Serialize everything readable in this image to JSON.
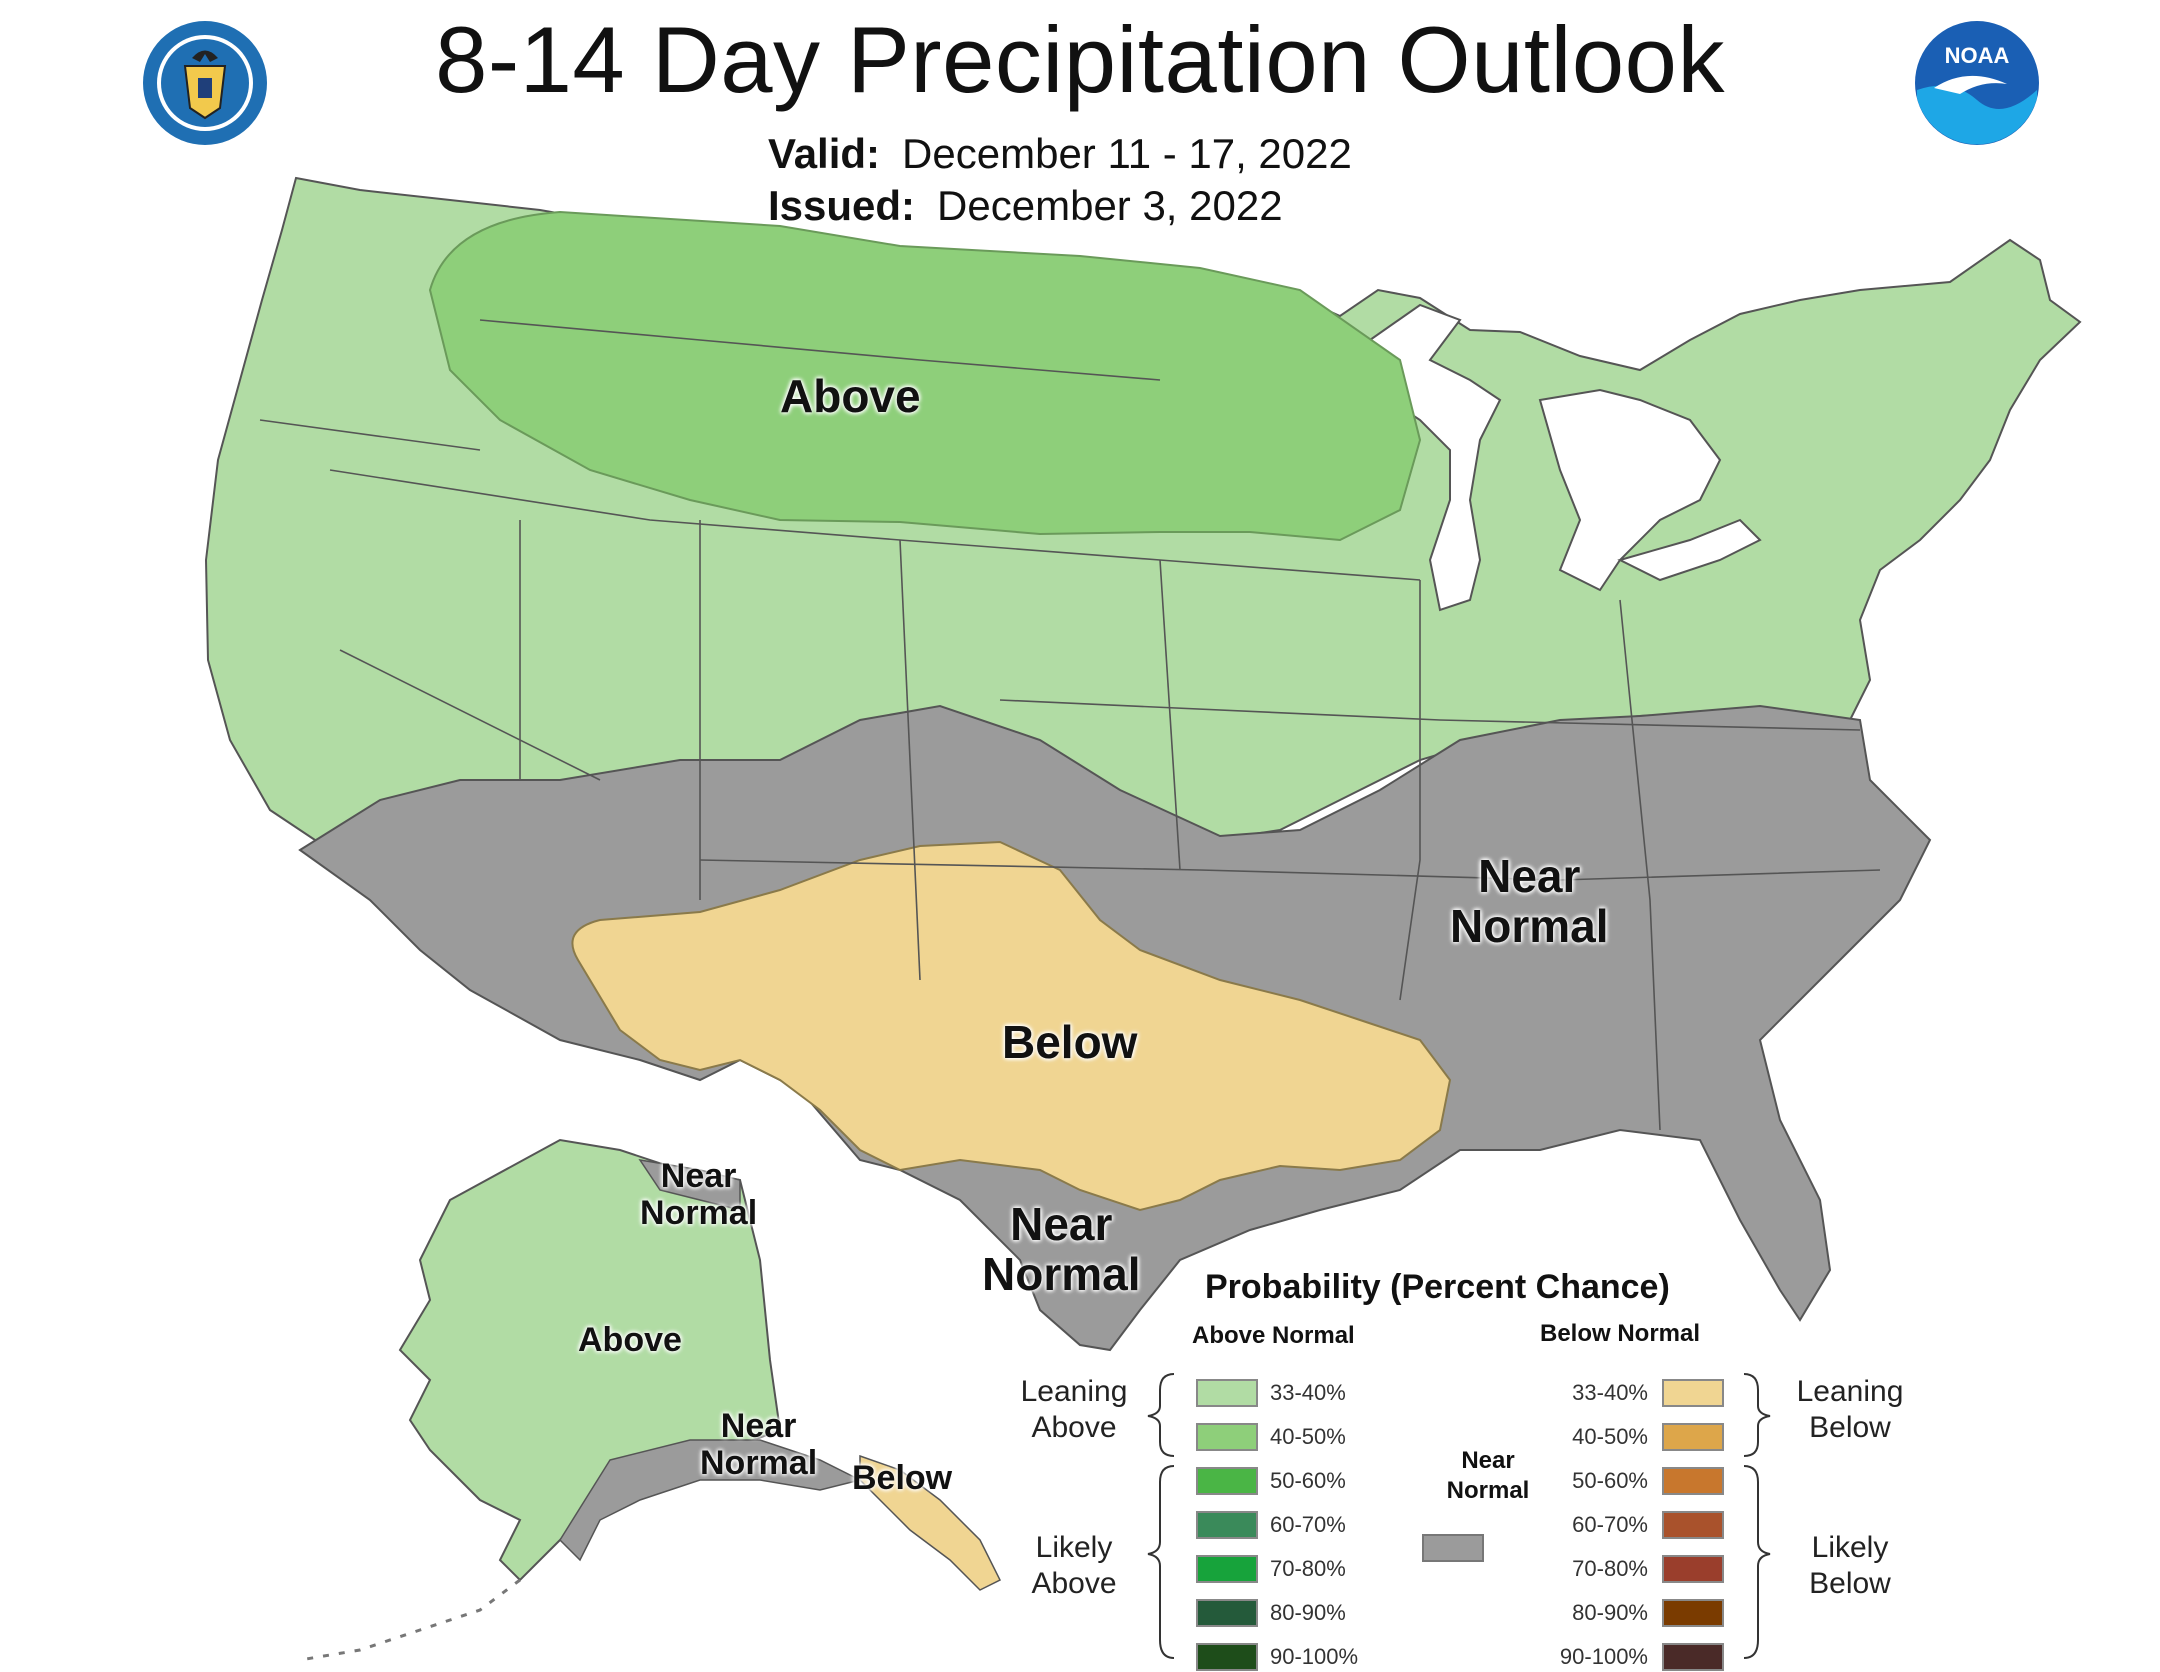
{
  "header": {
    "title": "8-14 Day Precipitation Outlook",
    "valid_label": "Valid:",
    "valid_value": "December 11 - 17, 2022",
    "issued_label": "Issued:",
    "issued_value": "December 3, 2022"
  },
  "logos": {
    "left": "commerce-seal-icon",
    "right": "noaa-logo-icon",
    "noaa_text": "NOAA"
  },
  "map_labels": {
    "above": "Above",
    "near_normal_line1": "Near",
    "near_normal_line2": "Normal",
    "below": "Below",
    "texas_near_line1": "Near",
    "texas_near_line2": "Normal",
    "ak_near_north_line1": "Near",
    "ak_near_north_line2": "Normal",
    "ak_above": "Above",
    "ak_near_south_line1": "Near",
    "ak_near_south_line2": "Normal",
    "ak_below": "Below"
  },
  "colors": {
    "above_33_40": "#b1dca4",
    "above_40_50": "#8ecf7a",
    "near_normal": "#9b9b9b",
    "below_33_40": "#f0d592",
    "land_border": "#555555"
  },
  "legend": {
    "title": "Probability (Percent Chance)",
    "above_head": "Above Normal",
    "below_head": "Below Normal",
    "near_head_line1": "Near",
    "near_head_line2": "Normal",
    "leaning_above_1": "Leaning",
    "leaning_above_2": "Above",
    "likely_above_1": "Likely",
    "likely_above_2": "Above",
    "leaning_below_1": "Leaning",
    "leaning_below_2": "Below",
    "likely_below_1": "Likely",
    "likely_below_2": "Below",
    "above_rows": [
      {
        "label": "33-40%",
        "color": "#b1dca4"
      },
      {
        "label": "40-50%",
        "color": "#8ecf7a"
      },
      {
        "label": "50-60%",
        "color": "#4ab545"
      },
      {
        "label": "60-70%",
        "color": "#3a8a5a"
      },
      {
        "label": "70-80%",
        "color": "#17a33b"
      },
      {
        "label": "80-90%",
        "color": "#245a3a"
      },
      {
        "label": "90-100%",
        "color": "#1e4d1a"
      }
    ],
    "below_rows": [
      {
        "label": "33-40%",
        "color": "#f0d592"
      },
      {
        "label": "40-50%",
        "color": "#dda64a"
      },
      {
        "label": "50-60%",
        "color": "#c8772d"
      },
      {
        "label": "60-70%",
        "color": "#a9522c"
      },
      {
        "label": "70-80%",
        "color": "#9a3e2c"
      },
      {
        "label": "80-90%",
        "color": "#7a3b00"
      },
      {
        "label": "90-100%",
        "color": "#4a2a28"
      }
    ]
  }
}
